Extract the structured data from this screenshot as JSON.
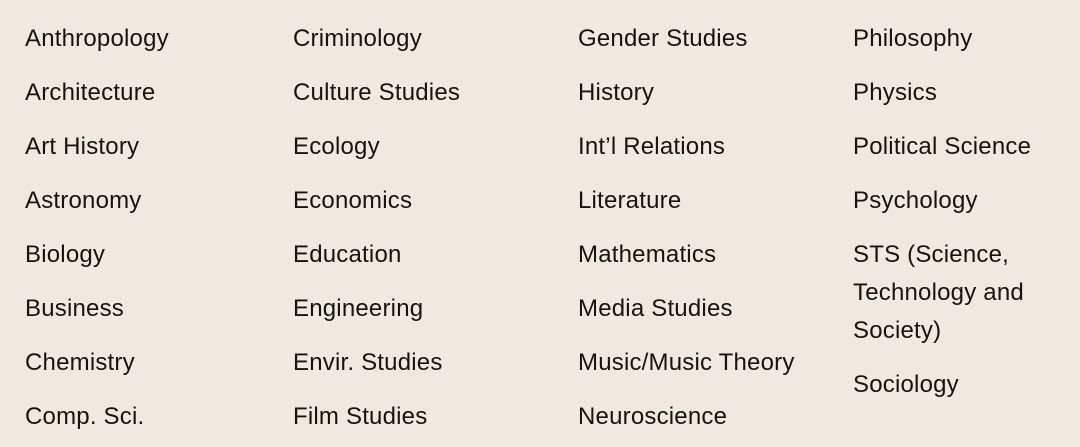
{
  "page": {
    "background_color": "#F0E9E2",
    "text_color": "#141414"
  },
  "subject_list": {
    "columns": [
      {
        "items": [
          "Anthropology",
          "Architecture",
          "Art History",
          "Astronomy",
          "Biology",
          "Business",
          "Chemistry",
          "Comp. Sci."
        ]
      },
      {
        "items": [
          "Criminology",
          "Culture Studies",
          "Ecology",
          "Economics",
          "Education",
          "Engineering",
          "Envir. Studies",
          "Film Studies"
        ]
      },
      {
        "items": [
          "Gender Studies",
          "History",
          "Int’l Relations",
          "Literature",
          "Mathematics",
          "Media Studies",
          "Music/Music Theory",
          "Neuroscience"
        ]
      },
      {
        "items": [
          "Philosophy",
          "Physics",
          "Political Science",
          "Psychology",
          "STS (Science, Technology and Society)",
          "Sociology"
        ]
      }
    ]
  }
}
